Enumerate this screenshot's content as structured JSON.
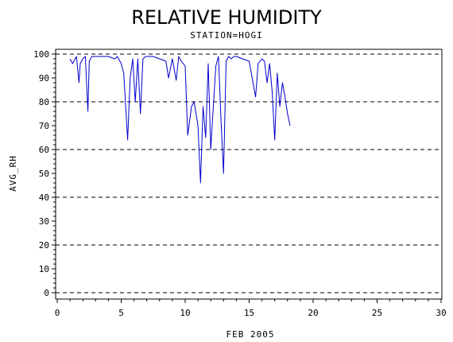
{
  "chart_data": {
    "type": "line",
    "title": "RELATIVE HUMIDITY",
    "subtitle": "STATION=HOGI",
    "xlabel": "FEB 2005",
    "ylabel": "AVG_RH",
    "xlim": [
      0,
      30
    ],
    "ylim": [
      0,
      100
    ],
    "x_ticks": [
      0,
      5,
      10,
      15,
      20,
      25,
      30
    ],
    "y_ticks": [
      0,
      10,
      20,
      30,
      40,
      50,
      60,
      70,
      80,
      90,
      100
    ],
    "gridlines_y": [
      0,
      20,
      40,
      60,
      80,
      100
    ],
    "grid": "dashed horizontal",
    "series_color": "#0000cc",
    "series": [
      {
        "x": [
          1.0,
          1.2,
          1.5,
          1.7,
          1.8,
          2.0,
          2.2,
          2.4,
          2.5,
          2.7,
          3.0,
          3.5,
          4.0,
          4.5,
          4.7,
          5.0,
          5.2,
          5.5,
          5.7,
          5.9,
          6.1,
          6.3,
          6.5,
          6.7,
          6.9,
          7.5,
          8.0,
          8.5,
          8.7,
          9.0,
          9.3,
          9.5,
          9.7,
          10.0,
          10.2,
          10.5,
          10.7,
          11.0,
          11.2,
          11.4,
          11.6,
          11.8,
          12.0,
          12.2,
          12.4,
          12.6,
          12.8,
          13.0,
          13.2,
          13.4,
          13.6,
          13.8,
          14.0,
          14.5,
          15.0,
          15.5,
          15.7,
          16.0,
          16.2,
          16.4,
          16.6,
          16.8,
          17.0,
          17.2,
          17.4,
          17.6,
          17.8,
          18.0,
          18.2
        ],
        "y": [
          98,
          96,
          99,
          88,
          96,
          98,
          99,
          76,
          97,
          99,
          99,
          99,
          99,
          98,
          99,
          96,
          92,
          64,
          90,
          98,
          80,
          98,
          75,
          98,
          99,
          99,
          98,
          97,
          90,
          98,
          89,
          99,
          97,
          95,
          66,
          78,
          80,
          70,
          46,
          78,
          65,
          96,
          60,
          78,
          95,
          99,
          72,
          50,
          97,
          99,
          98,
          99,
          99,
          98,
          97,
          82,
          96,
          98,
          97,
          88,
          96,
          84,
          64,
          92,
          78,
          88,
          82,
          75,
          70
        ]
      }
    ]
  }
}
